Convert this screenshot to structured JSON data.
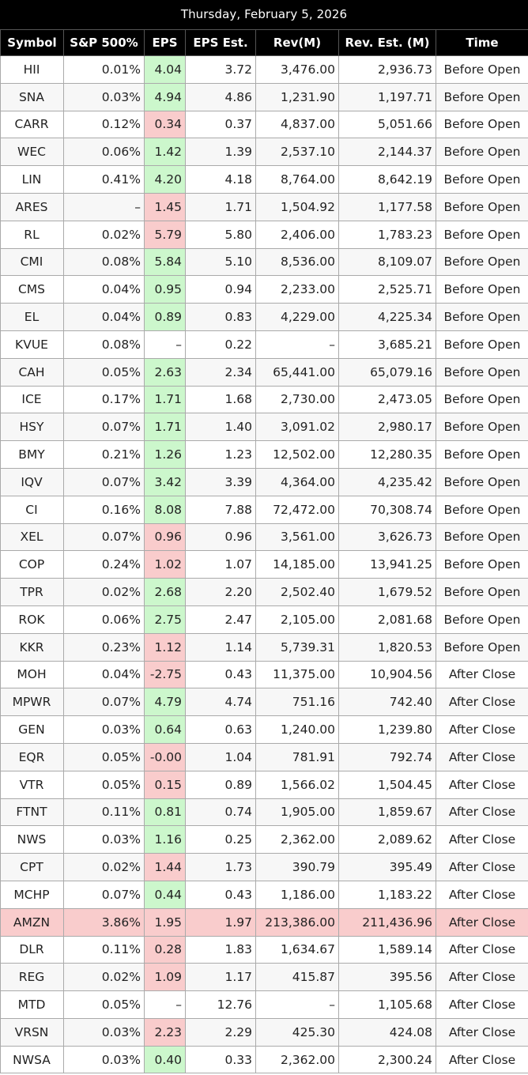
{
  "header": {
    "date": "Thursday, February 5, 2026"
  },
  "colors": {
    "beat": "#ccf7cc",
    "miss": "#f9cccc",
    "header_bg": "#000000"
  },
  "table": {
    "columns": [
      "Symbol",
      "S&P 500%",
      "EPS",
      "EPS Est.",
      "Rev(M)",
      "Rev. Est. (M)",
      "Time"
    ],
    "rows": [
      {
        "symbol": "HII",
        "sp": "0.01%",
        "eps": "4.04",
        "eps_est": "3.72",
        "rev": "3,476.00",
        "rev_est": "2,936.73",
        "time": "Before Open",
        "eps_status": "beat"
      },
      {
        "symbol": "SNA",
        "sp": "0.03%",
        "eps": "4.94",
        "eps_est": "4.86",
        "rev": "1,231.90",
        "rev_est": "1,197.71",
        "time": "Before Open",
        "eps_status": "beat"
      },
      {
        "symbol": "CARR",
        "sp": "0.12%",
        "eps": "0.34",
        "eps_est": "0.37",
        "rev": "4,837.00",
        "rev_est": "5,051.66",
        "time": "Before Open",
        "eps_status": "miss"
      },
      {
        "symbol": "WEC",
        "sp": "0.06%",
        "eps": "1.42",
        "eps_est": "1.39",
        "rev": "2,537.10",
        "rev_est": "2,144.37",
        "time": "Before Open",
        "eps_status": "beat"
      },
      {
        "symbol": "LIN",
        "sp": "0.41%",
        "eps": "4.20",
        "eps_est": "4.18",
        "rev": "8,764.00",
        "rev_est": "8,642.19",
        "time": "Before Open",
        "eps_status": "beat"
      },
      {
        "symbol": "ARES",
        "sp": "–",
        "eps": "1.45",
        "eps_est": "1.71",
        "rev": "1,504.92",
        "rev_est": "1,177.58",
        "time": "Before Open",
        "eps_status": "miss"
      },
      {
        "symbol": "RL",
        "sp": "0.02%",
        "eps": "5.79",
        "eps_est": "5.80",
        "rev": "2,406.00",
        "rev_est": "1,783.23",
        "time": "Before Open",
        "eps_status": "miss"
      },
      {
        "symbol": "CMI",
        "sp": "0.08%",
        "eps": "5.84",
        "eps_est": "5.10",
        "rev": "8,536.00",
        "rev_est": "8,109.07",
        "time": "Before Open",
        "eps_status": "beat"
      },
      {
        "symbol": "CMS",
        "sp": "0.04%",
        "eps": "0.95",
        "eps_est": "0.94",
        "rev": "2,233.00",
        "rev_est": "2,525.71",
        "time": "Before Open",
        "eps_status": "beat"
      },
      {
        "symbol": "EL",
        "sp": "0.04%",
        "eps": "0.89",
        "eps_est": "0.83",
        "rev": "4,229.00",
        "rev_est": "4,225.34",
        "time": "Before Open",
        "eps_status": "beat"
      },
      {
        "symbol": "KVUE",
        "sp": "0.08%",
        "eps": "–",
        "eps_est": "0.22",
        "rev": "–",
        "rev_est": "3,685.21",
        "time": "Before Open",
        "eps_status": "none"
      },
      {
        "symbol": "CAH",
        "sp": "0.05%",
        "eps": "2.63",
        "eps_est": "2.34",
        "rev": "65,441.00",
        "rev_est": "65,079.16",
        "time": "Before Open",
        "eps_status": "beat"
      },
      {
        "symbol": "ICE",
        "sp": "0.17%",
        "eps": "1.71",
        "eps_est": "1.68",
        "rev": "2,730.00",
        "rev_est": "2,473.05",
        "time": "Before Open",
        "eps_status": "beat"
      },
      {
        "symbol": "HSY",
        "sp": "0.07%",
        "eps": "1.71",
        "eps_est": "1.40",
        "rev": "3,091.02",
        "rev_est": "2,980.17",
        "time": "Before Open",
        "eps_status": "beat"
      },
      {
        "symbol": "BMY",
        "sp": "0.21%",
        "eps": "1.26",
        "eps_est": "1.23",
        "rev": "12,502.00",
        "rev_est": "12,280.35",
        "time": "Before Open",
        "eps_status": "beat"
      },
      {
        "symbol": "IQV",
        "sp": "0.07%",
        "eps": "3.42",
        "eps_est": "3.39",
        "rev": "4,364.00",
        "rev_est": "4,235.42",
        "time": "Before Open",
        "eps_status": "beat"
      },
      {
        "symbol": "CI",
        "sp": "0.16%",
        "eps": "8.08",
        "eps_est": "7.88",
        "rev": "72,472.00",
        "rev_est": "70,308.74",
        "time": "Before Open",
        "eps_status": "beat"
      },
      {
        "symbol": "XEL",
        "sp": "0.07%",
        "eps": "0.96",
        "eps_est": "0.96",
        "rev": "3,561.00",
        "rev_est": "3,626.73",
        "time": "Before Open",
        "eps_status": "miss"
      },
      {
        "symbol": "COP",
        "sp": "0.24%",
        "eps": "1.02",
        "eps_est": "1.07",
        "rev": "14,185.00",
        "rev_est": "13,941.25",
        "time": "Before Open",
        "eps_status": "miss"
      },
      {
        "symbol": "TPR",
        "sp": "0.02%",
        "eps": "2.68",
        "eps_est": "2.20",
        "rev": "2,502.40",
        "rev_est": "1,679.52",
        "time": "Before Open",
        "eps_status": "beat"
      },
      {
        "symbol": "ROK",
        "sp": "0.06%",
        "eps": "2.75",
        "eps_est": "2.47",
        "rev": "2,105.00",
        "rev_est": "2,081.68",
        "time": "Before Open",
        "eps_status": "beat"
      },
      {
        "symbol": "KKR",
        "sp": "0.23%",
        "eps": "1.12",
        "eps_est": "1.14",
        "rev": "5,739.31",
        "rev_est": "1,820.53",
        "time": "Before Open",
        "eps_status": "miss"
      },
      {
        "symbol": "MOH",
        "sp": "0.04%",
        "eps": "-2.75",
        "eps_est": "0.43",
        "rev": "11,375.00",
        "rev_est": "10,904.56",
        "time": "After Close",
        "eps_status": "miss"
      },
      {
        "symbol": "MPWR",
        "sp": "0.07%",
        "eps": "4.79",
        "eps_est": "4.74",
        "rev": "751.16",
        "rev_est": "742.40",
        "time": "After Close",
        "eps_status": "beat"
      },
      {
        "symbol": "GEN",
        "sp": "0.03%",
        "eps": "0.64",
        "eps_est": "0.63",
        "rev": "1,240.00",
        "rev_est": "1,239.80",
        "time": "After Close",
        "eps_status": "beat"
      },
      {
        "symbol": "EQR",
        "sp": "0.05%",
        "eps": "-0.00",
        "eps_est": "1.04",
        "rev": "781.91",
        "rev_est": "792.74",
        "time": "After Close",
        "eps_status": "miss"
      },
      {
        "symbol": "VTR",
        "sp": "0.05%",
        "eps": "0.15",
        "eps_est": "0.89",
        "rev": "1,566.02",
        "rev_est": "1,504.45",
        "time": "After Close",
        "eps_status": "miss"
      },
      {
        "symbol": "FTNT",
        "sp": "0.11%",
        "eps": "0.81",
        "eps_est": "0.74",
        "rev": "1,905.00",
        "rev_est": "1,859.67",
        "time": "After Close",
        "eps_status": "beat"
      },
      {
        "symbol": "NWS",
        "sp": "0.03%",
        "eps": "1.16",
        "eps_est": "0.25",
        "rev": "2,362.00",
        "rev_est": "2,089.62",
        "time": "After Close",
        "eps_status": "beat"
      },
      {
        "symbol": "CPT",
        "sp": "0.02%",
        "eps": "1.44",
        "eps_est": "1.73",
        "rev": "390.79",
        "rev_est": "395.49",
        "time": "After Close",
        "eps_status": "miss"
      },
      {
        "symbol": "MCHP",
        "sp": "0.07%",
        "eps": "0.44",
        "eps_est": "0.43",
        "rev": "1,186.00",
        "rev_est": "1,183.22",
        "time": "After Close",
        "eps_status": "beat"
      },
      {
        "symbol": "AMZN",
        "sp": "3.86%",
        "eps": "1.95",
        "eps_est": "1.97",
        "rev": "213,386.00",
        "rev_est": "211,436.96",
        "time": "After Close",
        "eps_status": "miss",
        "highlight": true
      },
      {
        "symbol": "DLR",
        "sp": "0.11%",
        "eps": "0.28",
        "eps_est": "1.83",
        "rev": "1,634.67",
        "rev_est": "1,589.14",
        "time": "After Close",
        "eps_status": "miss"
      },
      {
        "symbol": "REG",
        "sp": "0.02%",
        "eps": "1.09",
        "eps_est": "1.17",
        "rev": "415.87",
        "rev_est": "395.56",
        "time": "After Close",
        "eps_status": "miss"
      },
      {
        "symbol": "MTD",
        "sp": "0.05%",
        "eps": "–",
        "eps_est": "12.76",
        "rev": "–",
        "rev_est": "1,105.68",
        "time": "After Close",
        "eps_status": "none"
      },
      {
        "symbol": "VRSN",
        "sp": "0.03%",
        "eps": "2.23",
        "eps_est": "2.29",
        "rev": "425.30",
        "rev_est": "424.08",
        "time": "After Close",
        "eps_status": "miss"
      },
      {
        "symbol": "NWSA",
        "sp": "0.03%",
        "eps": "0.40",
        "eps_est": "0.33",
        "rev": "2,362.00",
        "rev_est": "2,300.24",
        "time": "After Close",
        "eps_status": "beat"
      }
    ]
  }
}
